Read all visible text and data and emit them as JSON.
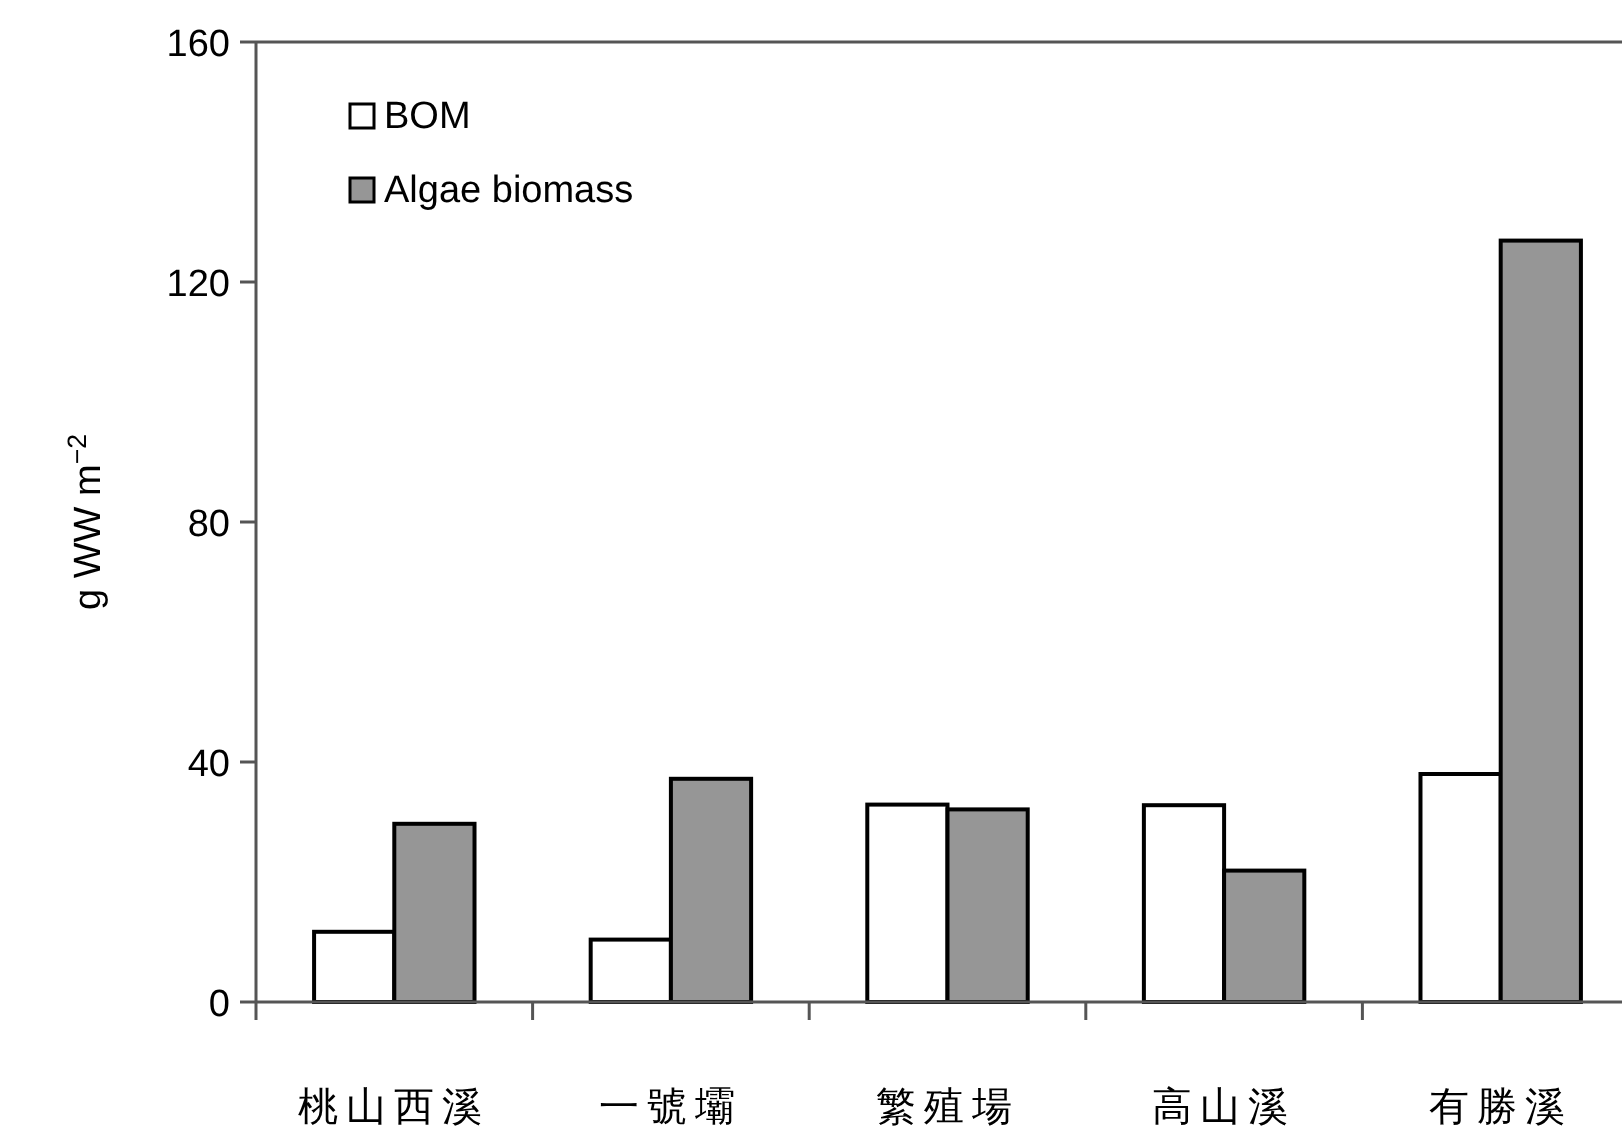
{
  "chart_data": {
    "type": "bar",
    "ylabel": "g WW m$^{−2}$",
    "categories": [
      "桃山西溪",
      "一號壩",
      "繁殖場",
      "高山溪",
      "有勝溪"
    ],
    "series": [
      {
        "name": "BOM",
        "color": "#ffffff",
        "values": [
          11.7,
          10.4,
          32.9,
          32.8,
          38
        ]
      },
      {
        "name": "Algae biomass",
        "color": "#969696",
        "values": [
          29.7,
          37.2,
          32.1,
          21.9,
          126.9
        ]
      }
    ],
    "ylim": [
      0,
      160
    ],
    "yticks": [
      0,
      40,
      80,
      120,
      160
    ],
    "grid": false,
    "legend": "top left"
  }
}
